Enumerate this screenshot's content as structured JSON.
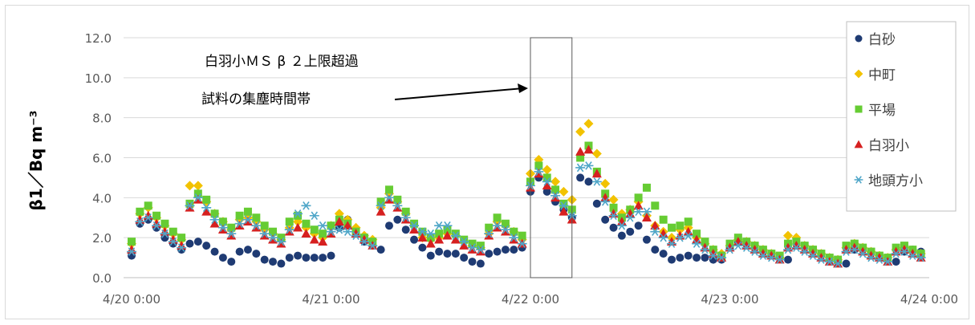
{
  "chart_data": {
    "type": "scatter",
    "title": "",
    "ylabel": "β1／Bq m⁻³",
    "xlabel": "",
    "ylim": [
      0,
      12
    ],
    "y_ticks": [
      "0.0",
      "2.0",
      "4.0",
      "6.0",
      "8.0",
      "10.0",
      "12.0"
    ],
    "x_range_hours": [
      0,
      96
    ],
    "x_ticks": [
      "4/20 0:00",
      "4/21 0:00",
      "4/22 0:00",
      "4/23 0:00",
      "4/24 0:00"
    ],
    "grid": "horizontal",
    "legend_position": "top-right",
    "annotation": {
      "lines": [
        "白羽小ＭＳ β ２上限超過",
        "試料の集塵時間帯"
      ],
      "highlight_x_range_hours": [
        48.0,
        53.0
      ]
    },
    "series": [
      {
        "name": "白砂",
        "color": "#1f3b73",
        "marker": "circle",
        "x": [
          0,
          1,
          2,
          3,
          4,
          5,
          6,
          7,
          8,
          9,
          10,
          11,
          12,
          13,
          14,
          15,
          16,
          17,
          18,
          19,
          20,
          21,
          22,
          23,
          24,
          25,
          26,
          27,
          28,
          29,
          30,
          31,
          32,
          33,
          34,
          35,
          36,
          37,
          38,
          39,
          40,
          41,
          42,
          43,
          44,
          45,
          46,
          47,
          48,
          49,
          50,
          51,
          52,
          53,
          54,
          55,
          56,
          57,
          58,
          59,
          60,
          61,
          62,
          63,
          64,
          65,
          66,
          67,
          68,
          69,
          70,
          71,
          72,
          73,
          74,
          75,
          76,
          77,
          78,
          79,
          80,
          81,
          82,
          83,
          84,
          85,
          86,
          87,
          88,
          89,
          90,
          91,
          92,
          93,
          94,
          95
        ],
        "y": [
          1.1,
          2.7,
          2.9,
          2.5,
          2.0,
          1.7,
          1.4,
          1.7,
          1.8,
          1.6,
          1.3,
          1.0,
          0.8,
          1.3,
          1.4,
          1.2,
          0.9,
          0.8,
          0.7,
          1.0,
          1.1,
          1.0,
          1.0,
          1.0,
          1.1,
          2.5,
          2.9,
          2.4,
          1.8,
          1.6,
          1.4,
          2.6,
          2.9,
          2.4,
          1.9,
          1.5,
          1.1,
          1.3,
          1.2,
          1.2,
          1.0,
          0.8,
          0.7,
          1.2,
          1.3,
          1.4,
          1.4,
          1.5,
          4.3,
          5.0,
          4.3,
          3.8,
          3.4,
          3.0,
          5.0,
          4.8,
          3.7,
          2.9,
          2.5,
          2.1,
          2.3,
          2.6,
          1.9,
          1.4,
          1.2,
          0.9,
          1.0,
          1.1,
          1.0,
          1.0,
          0.9,
          0.9,
          1.5,
          1.8,
          1.7,
          1.5,
          1.3,
          1.2,
          1.0,
          0.9,
          1.7,
          1.6,
          1.4,
          1.2,
          1.0,
          0.8,
          0.7,
          1.4,
          1.5,
          1.3,
          1.1,
          1.0,
          0.8,
          1.3,
          1.4,
          1.3
        ]
      },
      {
        "name": "中町",
        "color": "#f2c200",
        "marker": "diamond",
        "x": [
          0,
          1,
          2,
          3,
          4,
          5,
          6,
          7,
          8,
          9,
          10,
          11,
          12,
          13,
          14,
          15,
          16,
          17,
          18,
          19,
          20,
          21,
          22,
          23,
          24,
          25,
          26,
          27,
          28,
          29,
          30,
          31,
          32,
          33,
          34,
          35,
          36,
          37,
          38,
          39,
          40,
          41,
          42,
          43,
          44,
          45,
          46,
          47,
          48,
          49,
          50,
          51,
          52,
          53,
          54,
          55,
          56,
          57,
          58,
          59,
          60,
          61,
          62,
          63,
          64,
          65,
          66,
          67,
          68,
          69,
          70,
          71,
          72,
          73,
          74,
          75,
          76,
          77,
          78,
          79,
          80,
          81,
          82,
          83,
          84,
          85,
          86,
          87,
          88,
          89,
          90,
          91,
          92,
          93,
          94,
          95
        ],
        "y": [
          1.7,
          3.2,
          3.5,
          3.0,
          2.6,
          2.2,
          1.9,
          4.6,
          4.6,
          3.8,
          3.2,
          2.8,
          2.4,
          2.9,
          3.0,
          2.8,
          2.4,
          2.2,
          1.9,
          2.5,
          2.8,
          2.5,
          2.2,
          2.0,
          2.6,
          3.2,
          2.9,
          2.5,
          2.1,
          1.9,
          3.5,
          4.2,
          3.8,
          3.2,
          2.6,
          2.0,
          1.9,
          2.0,
          2.2,
          2.1,
          1.8,
          1.6,
          1.5,
          2.2,
          2.8,
          2.6,
          2.3,
          1.9,
          5.2,
          5.9,
          5.4,
          4.8,
          4.3,
          3.9,
          7.3,
          7.7,
          6.2,
          4.7,
          3.9,
          3.2,
          3.4,
          3.8,
          3.1,
          2.6,
          2.3,
          2.0,
          2.4,
          2.5,
          2.0,
          1.7,
          1.4,
          1.2,
          1.6,
          1.9,
          1.8,
          1.6,
          1.4,
          1.2,
          1.0,
          2.1,
          2.0,
          1.6,
          1.4,
          1.2,
          1.0,
          0.9,
          1.5,
          1.7,
          1.5,
          1.3,
          1.1,
          1.0,
          1.4,
          1.5,
          1.3,
          1.2
        ]
      },
      {
        "name": "平場",
        "color": "#66cc33",
        "marker": "square",
        "x": [
          0,
          1,
          2,
          3,
          4,
          5,
          6,
          7,
          8,
          9,
          10,
          11,
          12,
          13,
          14,
          15,
          16,
          17,
          18,
          19,
          20,
          21,
          22,
          23,
          24,
          25,
          26,
          27,
          28,
          29,
          30,
          31,
          32,
          33,
          34,
          35,
          36,
          37,
          38,
          39,
          40,
          41,
          42,
          43,
          44,
          45,
          46,
          47,
          48,
          49,
          50,
          51,
          52,
          53,
          54,
          55,
          56,
          57,
          58,
          59,
          60,
          61,
          62,
          63,
          64,
          65,
          66,
          67,
          68,
          69,
          70,
          71,
          72,
          73,
          74,
          75,
          76,
          77,
          78,
          79,
          80,
          81,
          82,
          83,
          84,
          85,
          86,
          87,
          88,
          89,
          90,
          91,
          92,
          93,
          94,
          95
        ],
        "y": [
          1.8,
          3.3,
          3.6,
          3.1,
          2.7,
          2.3,
          2.0,
          3.7,
          4.2,
          3.9,
          3.2,
          2.8,
          2.5,
          3.1,
          3.3,
          3.0,
          2.6,
          2.3,
          2.0,
          2.8,
          3.1,
          2.7,
          2.4,
          2.2,
          2.6,
          2.9,
          2.7,
          2.3,
          2.0,
          1.8,
          3.8,
          4.4,
          3.9,
          3.3,
          2.7,
          2.3,
          2.0,
          2.2,
          2.4,
          2.2,
          1.9,
          1.7,
          1.6,
          2.5,
          3.0,
          2.7,
          2.3,
          2.1,
          4.8,
          5.6,
          5.0,
          4.4,
          3.7,
          3.4,
          6.0,
          6.6,
          5.3,
          4.2,
          3.5,
          3.0,
          3.4,
          4.0,
          4.5,
          3.6,
          2.9,
          2.5,
          2.6,
          2.8,
          2.2,
          1.8,
          1.4,
          1.1,
          1.7,
          2.0,
          1.8,
          1.6,
          1.4,
          1.2,
          1.1,
          1.7,
          1.8,
          1.6,
          1.4,
          1.2,
          1.0,
          0.9,
          1.6,
          1.7,
          1.5,
          1.3,
          1.1,
          1.0,
          1.5,
          1.6,
          1.4,
          1.2
        ]
      },
      {
        "name": "白羽小",
        "color": "#d62020",
        "marker": "triangle",
        "x": [
          0,
          1,
          2,
          3,
          4,
          5,
          6,
          7,
          8,
          9,
          10,
          11,
          12,
          13,
          14,
          15,
          16,
          17,
          18,
          19,
          20,
          21,
          22,
          23,
          24,
          25,
          26,
          27,
          28,
          29,
          30,
          31,
          32,
          33,
          34,
          35,
          36,
          37,
          38,
          39,
          40,
          41,
          42,
          43,
          44,
          45,
          46,
          47,
          48,
          49,
          50,
          51,
          52,
          53,
          54,
          55,
          56,
          57,
          58,
          59,
          60,
          61,
          62,
          63,
          64,
          65,
          66,
          67,
          68,
          69,
          70,
          71,
          72,
          73,
          74,
          75,
          76,
          77,
          78,
          79,
          80,
          81,
          82,
          83,
          84,
          85,
          86,
          87,
          88,
          89,
          90,
          91,
          92,
          93,
          94,
          95
        ],
        "y": [
          1.4,
          2.9,
          3.1,
          2.7,
          2.3,
          1.9,
          1.6,
          3.5,
          3.9,
          3.3,
          2.7,
          2.4,
          2.1,
          2.6,
          2.8,
          2.5,
          2.1,
          1.9,
          1.7,
          2.3,
          2.5,
          2.2,
          1.9,
          1.8,
          2.2,
          2.8,
          2.6,
          2.2,
          1.9,
          1.6,
          3.3,
          3.9,
          3.5,
          2.9,
          2.4,
          2.0,
          1.7,
          1.9,
          2.1,
          1.9,
          1.6,
          1.4,
          1.3,
          2.1,
          2.5,
          2.3,
          1.9,
          1.7,
          4.5,
          5.2,
          4.6,
          4.0,
          3.3,
          2.9,
          6.3,
          6.4,
          5.2,
          4.0,
          3.2,
          2.8,
          3.2,
          3.6,
          3.0,
          2.6,
          2.2,
          1.8,
          2.1,
          2.3,
          1.9,
          1.5,
          1.2,
          1.0,
          1.5,
          1.8,
          1.6,
          1.4,
          1.2,
          1.1,
          0.9,
          1.5,
          1.6,
          1.4,
          1.2,
          1.0,
          0.8,
          0.7,
          1.4,
          1.5,
          1.3,
          1.1,
          1.0,
          0.8,
          1.3,
          1.4,
          1.2,
          1.0
        ]
      },
      {
        "name": "地頭方小",
        "color": "#4fa6c8",
        "marker": "asterisk",
        "x": [
          0,
          1,
          2,
          3,
          4,
          5,
          6,
          7,
          8,
          9,
          10,
          11,
          12,
          13,
          14,
          15,
          16,
          17,
          18,
          19,
          20,
          21,
          22,
          23,
          24,
          25,
          26,
          27,
          28,
          29,
          30,
          31,
          32,
          33,
          34,
          35,
          36,
          37,
          38,
          39,
          40,
          41,
          42,
          43,
          44,
          45,
          46,
          47,
          48,
          49,
          50,
          51,
          52,
          53,
          54,
          55,
          56,
          57,
          58,
          59,
          60,
          61,
          62,
          63,
          64,
          65,
          66,
          67,
          68,
          69,
          70,
          71,
          72,
          73,
          74,
          75,
          76,
          77,
          78,
          79,
          80,
          81,
          82,
          83,
          84,
          85,
          86,
          87,
          88,
          89,
          90,
          91,
          92,
          93,
          94,
          95
        ],
        "y": [
          1.3,
          2.8,
          3.0,
          2.6,
          2.2,
          1.8,
          1.5,
          3.6,
          4.0,
          3.5,
          2.9,
          2.5,
          2.2,
          2.7,
          2.9,
          2.6,
          2.2,
          2.0,
          1.8,
          2.4,
          3.2,
          3.6,
          3.1,
          2.6,
          2.3,
          2.4,
          2.3,
          2.1,
          1.8,
          1.6,
          3.6,
          4.0,
          3.6,
          3.0,
          2.6,
          2.3,
          2.2,
          2.6,
          2.6,
          2.1,
          1.8,
          1.5,
          1.4,
          2.2,
          2.6,
          2.4,
          2.0,
          1.7,
          4.6,
          5.3,
          4.8,
          4.1,
          3.6,
          3.1,
          5.5,
          5.6,
          4.8,
          3.8,
          3.1,
          2.6,
          3.0,
          3.3,
          3.3,
          2.3,
          2.0,
          1.7,
          2.0,
          2.1,
          1.7,
          1.4,
          1.1,
          1.0,
          1.4,
          1.6,
          1.5,
          1.3,
          1.1,
          1.0,
          0.9,
          1.4,
          1.5,
          1.3,
          1.1,
          0.9,
          0.8,
          0.7,
          1.3,
          1.4,
          1.2,
          1.0,
          0.9,
          0.8,
          1.2,
          1.3,
          1.1,
          1.0
        ]
      }
    ]
  }
}
